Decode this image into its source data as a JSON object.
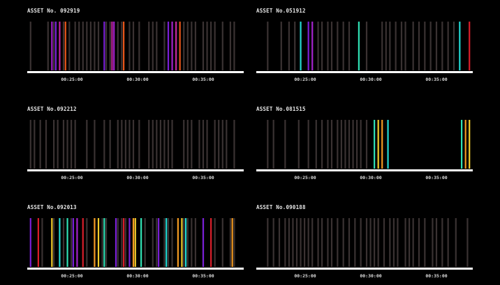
{
  "colors": {
    "background": "#000000",
    "baseline": "#ffffff",
    "inactive_bar": "#3a3232",
    "palette": {
      "purple": "#7a1fd6",
      "violet": "#a020c8",
      "magenta": "#c0269e",
      "orange": "#e8561a",
      "red": "#d81e2a",
      "yellow": "#f2cc2a",
      "amber": "#f29a22",
      "cyan": "#22d8d2",
      "mint": "#2fe0b4"
    }
  },
  "time_window": [
    "00:20:00",
    "00:38:00"
  ],
  "panels": [
    {
      "title": "ASSET No. 092919",
      "ticks": [
        "00:25:00",
        "00:30:00",
        "00:35:00"
      ],
      "gray_bars": [
        "00:20:10",
        "00:21:40",
        "00:22:10",
        "00:23:00",
        "00:23:30",
        "00:24:00",
        "00:24:20",
        "00:24:40",
        "00:25:00",
        "00:25:20",
        "00:25:40",
        "00:26:00",
        "00:26:40",
        "00:27:00",
        "00:27:40",
        "00:28:00",
        "00:28:40",
        "00:29:00",
        "00:29:30",
        "00:30:20",
        "00:30:40",
        "00:31:00",
        "00:31:40",
        "00:32:20",
        "00:32:40",
        "00:33:20",
        "00:33:40",
        "00:34:00",
        "00:34:20",
        "00:35:00",
        "00:35:20",
        "00:35:40",
        "00:36:00",
        "00:36:40",
        "00:37:20",
        "00:37:40"
      ],
      "events": [
        {
          "t": "00:22:00",
          "color": "violet"
        },
        {
          "t": "00:22:20",
          "color": "purple"
        },
        {
          "t": "00:22:40",
          "color": "magenta"
        },
        {
          "t": "00:23:10",
          "color": "orange"
        },
        {
          "t": "00:26:30",
          "color": "purple"
        },
        {
          "t": "00:27:10",
          "color": "magenta"
        },
        {
          "t": "00:27:20",
          "color": "violet"
        },
        {
          "t": "00:28:10",
          "color": "orange"
        },
        {
          "t": "00:32:00",
          "color": "purple"
        },
        {
          "t": "00:32:20",
          "color": "violet"
        },
        {
          "t": "00:32:40",
          "color": "magenta"
        },
        {
          "t": "00:33:00",
          "color": "orange"
        }
      ]
    },
    {
      "title": "ASSET No.051912",
      "ticks": [
        "00:25:00",
        "00:30:00",
        "00:35:00"
      ],
      "gray_bars": [
        "00:20:30",
        "00:21:40",
        "00:22:20",
        "00:22:50",
        "00:23:20",
        "00:24:20",
        "00:24:50",
        "00:25:10",
        "00:25:40",
        "00:26:00",
        "00:26:30",
        "00:27:00",
        "00:27:30",
        "00:29:00",
        "00:30:20",
        "00:30:40",
        "00:31:00",
        "00:31:30",
        "00:32:00",
        "00:32:20",
        "00:33:00",
        "00:33:30",
        "00:34:00",
        "00:34:30",
        "00:35:00",
        "00:35:30",
        "00:36:00",
        "00:36:30"
      ],
      "events": [
        {
          "t": "00:23:20",
          "color": "cyan"
        },
        {
          "t": "00:24:00",
          "color": "purple"
        },
        {
          "t": "00:24:20",
          "color": "violet"
        },
        {
          "t": "00:28:20",
          "color": "mint"
        },
        {
          "t": "00:37:00",
          "color": "cyan"
        },
        {
          "t": "00:37:50",
          "color": "red"
        }
      ]
    },
    {
      "title": "ASSET No.092212",
      "ticks": [
        "00:25:00",
        "00:30:00",
        "00:35:00"
      ],
      "gray_bars": [
        "00:20:10",
        "00:20:30",
        "00:21:00",
        "00:21:30",
        "00:22:10",
        "00:22:30",
        "00:23:00",
        "00:23:20",
        "00:23:40",
        "00:24:00",
        "00:25:00",
        "00:25:40",
        "00:26:30",
        "00:27:00",
        "00:27:40",
        "00:28:00",
        "00:28:20",
        "00:28:40",
        "00:29:00",
        "00:29:30",
        "00:30:20",
        "00:30:40",
        "00:31:00",
        "00:31:20",
        "00:31:40",
        "00:32:00",
        "00:32:20",
        "00:33:20",
        "00:33:40",
        "00:34:00",
        "00:34:40",
        "00:35:00",
        "00:35:20",
        "00:36:00",
        "00:36:20",
        "00:36:40",
        "00:37:00",
        "00:37:40"
      ],
      "events": []
    },
    {
      "title": "ASSET No.081515",
      "ticks": [
        "00:25:00",
        "00:30:00",
        "00:35:00"
      ],
      "gray_bars": [
        "00:20:30",
        "00:21:00",
        "00:22:00",
        "00:23:10",
        "00:24:00",
        "00:24:40",
        "00:25:10",
        "00:25:40",
        "00:26:00",
        "00:26:30",
        "00:26:50",
        "00:27:10",
        "00:27:30",
        "00:27:50",
        "00:28:10",
        "00:28:30",
        "00:29:00"
      ],
      "events": [
        {
          "t": "00:29:40",
          "color": "mint"
        },
        {
          "t": "00:30:00",
          "color": "yellow"
        },
        {
          "t": "00:30:20",
          "color": "amber"
        },
        {
          "t": "00:30:50",
          "color": "cyan"
        },
        {
          "t": "00:37:10",
          "color": "mint"
        },
        {
          "t": "00:37:30",
          "color": "amber"
        },
        {
          "t": "00:37:50",
          "color": "yellow"
        }
      ]
    },
    {
      "title": "ASSET No.092013",
      "ticks": [
        "00:25:00",
        "00:30:00",
        "00:35:00"
      ],
      "gray_bars": [
        "00:21:10",
        "00:22:10",
        "00:23:00",
        "00:23:40",
        "00:24:10",
        "00:25:00",
        "00:25:40",
        "00:26:20",
        "00:26:40",
        "00:27:40",
        "00:28:00",
        "00:28:20",
        "00:29:00",
        "00:29:40",
        "00:30:00",
        "00:30:40",
        "00:31:00",
        "00:31:40",
        "00:32:00",
        "00:32:20",
        "00:33:20",
        "00:33:40",
        "00:34:00",
        "00:34:20",
        "00:35:00",
        "00:35:40",
        "00:36:00",
        "00:36:40",
        "00:37:20",
        "00:37:40"
      ],
      "events": [
        {
          "t": "00:20:10",
          "color": "purple"
        },
        {
          "t": "00:20:50",
          "color": "red"
        },
        {
          "t": "00:22:00",
          "color": "yellow"
        },
        {
          "t": "00:22:40",
          "color": "cyan"
        },
        {
          "t": "00:23:20",
          "color": "mint"
        },
        {
          "t": "00:23:50",
          "color": "purple"
        },
        {
          "t": "00:24:10",
          "color": "violet"
        },
        {
          "t": "00:24:40",
          "color": "red"
        },
        {
          "t": "00:25:40",
          "color": "amber"
        },
        {
          "t": "00:26:00",
          "color": "yellow"
        },
        {
          "t": "00:26:30",
          "color": "mint"
        },
        {
          "t": "00:27:30",
          "color": "purple"
        },
        {
          "t": "00:28:10",
          "color": "red"
        },
        {
          "t": "00:28:40",
          "color": "purple"
        },
        {
          "t": "00:29:00",
          "color": "amber"
        },
        {
          "t": "00:29:10",
          "color": "yellow"
        },
        {
          "t": "00:29:40",
          "color": "mint"
        },
        {
          "t": "00:31:10",
          "color": "purple"
        },
        {
          "t": "00:31:50",
          "color": "cyan"
        },
        {
          "t": "00:32:50",
          "color": "amber"
        },
        {
          "t": "00:33:10",
          "color": "yellow"
        },
        {
          "t": "00:33:30",
          "color": "cyan"
        },
        {
          "t": "00:35:00",
          "color": "purple"
        },
        {
          "t": "00:35:40",
          "color": "red"
        },
        {
          "t": "00:37:30",
          "color": "amber"
        }
      ]
    },
    {
      "title": "ASSET No.090188",
      "ticks": [
        "00:25:00",
        "00:30:00",
        "00:35:00"
      ],
      "gray_bars": [
        "00:20:30",
        "00:21:00",
        "00:21:30",
        "00:22:00",
        "00:22:20",
        "00:22:40",
        "00:23:00",
        "00:23:20",
        "00:23:40",
        "00:24:00",
        "00:24:20",
        "00:24:50",
        "00:25:10",
        "00:25:40",
        "00:26:00",
        "00:26:30",
        "00:27:00",
        "00:27:30",
        "00:28:00",
        "00:28:30",
        "00:29:00",
        "00:29:20",
        "00:29:40",
        "00:30:00",
        "00:30:30",
        "00:31:00",
        "00:31:20",
        "00:31:40",
        "00:32:20",
        "00:32:40",
        "00:33:00",
        "00:33:30",
        "00:34:00",
        "00:34:40",
        "00:35:00",
        "00:35:30",
        "00:36:00",
        "00:36:40",
        "00:37:40"
      ],
      "events": []
    }
  ]
}
